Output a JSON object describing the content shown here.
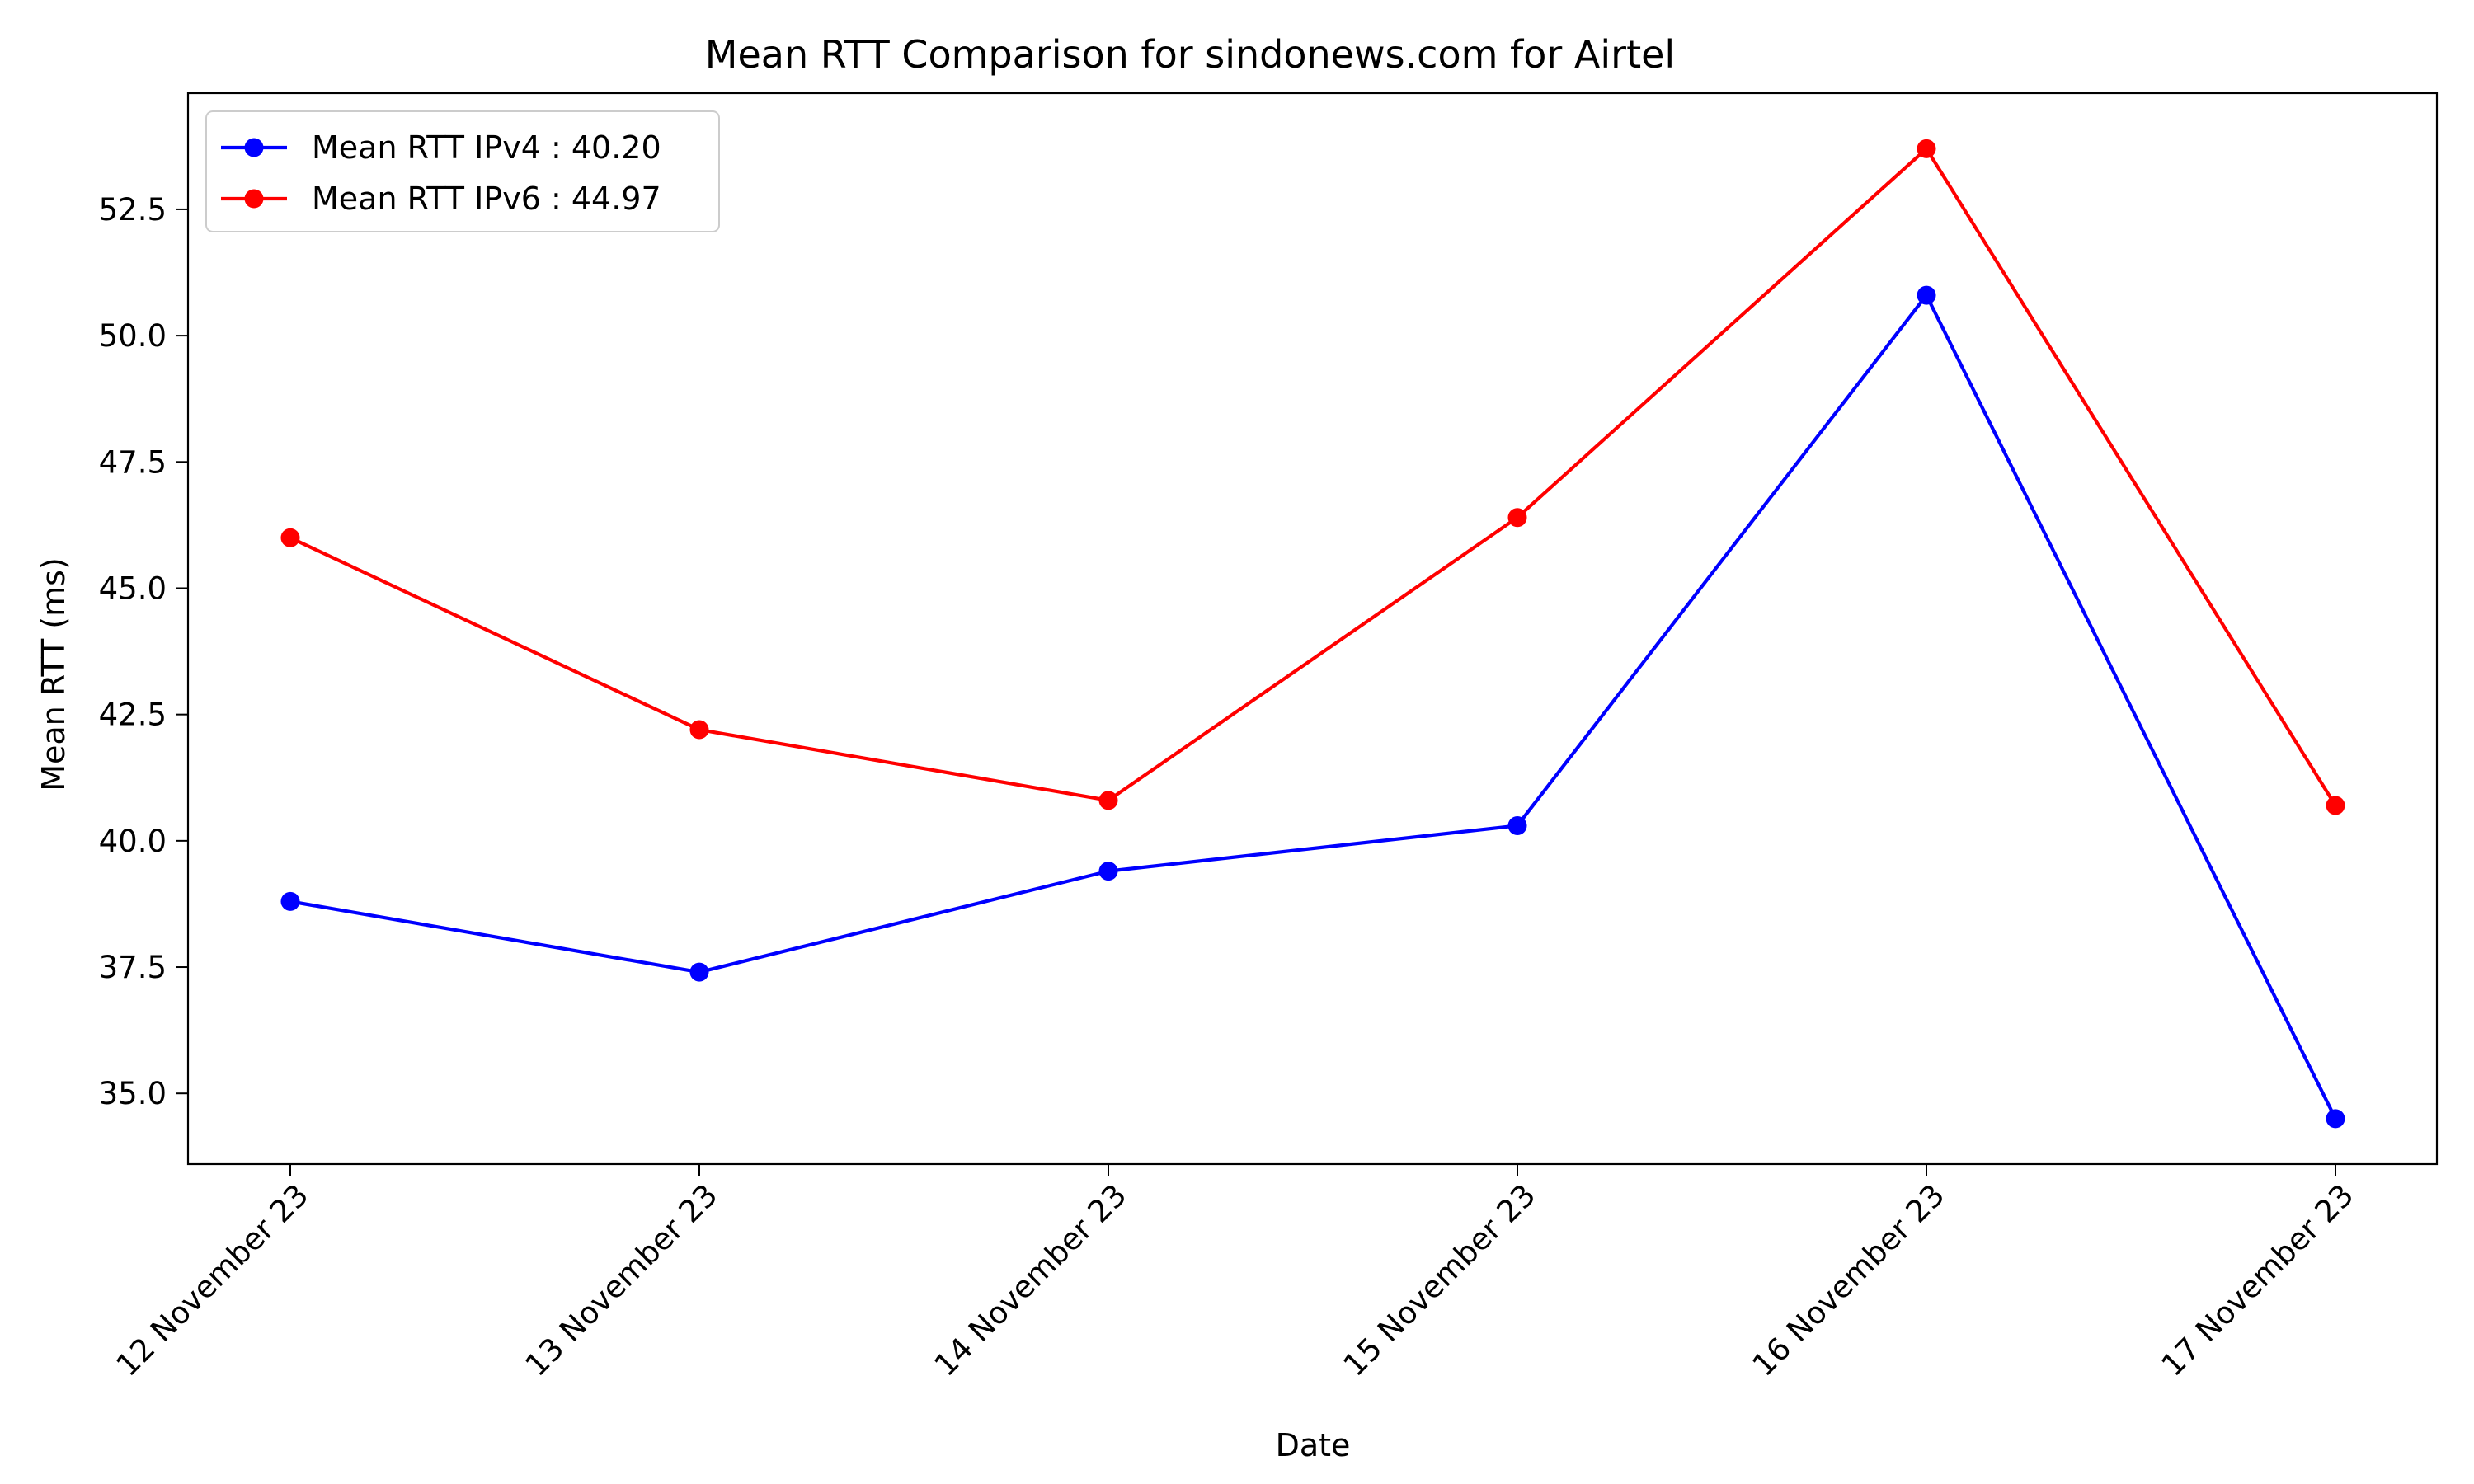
{
  "chart_data": {
    "type": "line",
    "title": "Mean RTT Comparison for sindonews.com for Airtel",
    "xlabel": "Date",
    "ylabel": "Mean RTT (ms)",
    "categories": [
      "12 November 23",
      "13 November 23",
      "14 November 23",
      "15 November 23",
      "16 November 23",
      "17 November 23"
    ],
    "ylim": [
      33.6,
      54.8
    ],
    "yticks": [
      35.0,
      37.5,
      40.0,
      42.5,
      45.0,
      47.5,
      50.0,
      52.5
    ],
    "ytick_labels": [
      "35.0",
      "37.5",
      "40.0",
      "42.5",
      "45.0",
      "47.5",
      "50.0",
      "52.5"
    ],
    "grid": false,
    "legend_position": "top-left",
    "series": [
      {
        "name": "Mean RTT IPv4 : 40.20",
        "color": "#0000ff",
        "marker": "circle",
        "values": [
          38.8,
          37.4,
          39.4,
          40.3,
          50.8,
          34.5
        ]
      },
      {
        "name": "Mean RTT IPv6 : 44.97",
        "color": "#ff0000",
        "marker": "circle",
        "values": [
          46.0,
          42.2,
          40.8,
          46.4,
          53.7,
          40.7
        ]
      }
    ]
  }
}
